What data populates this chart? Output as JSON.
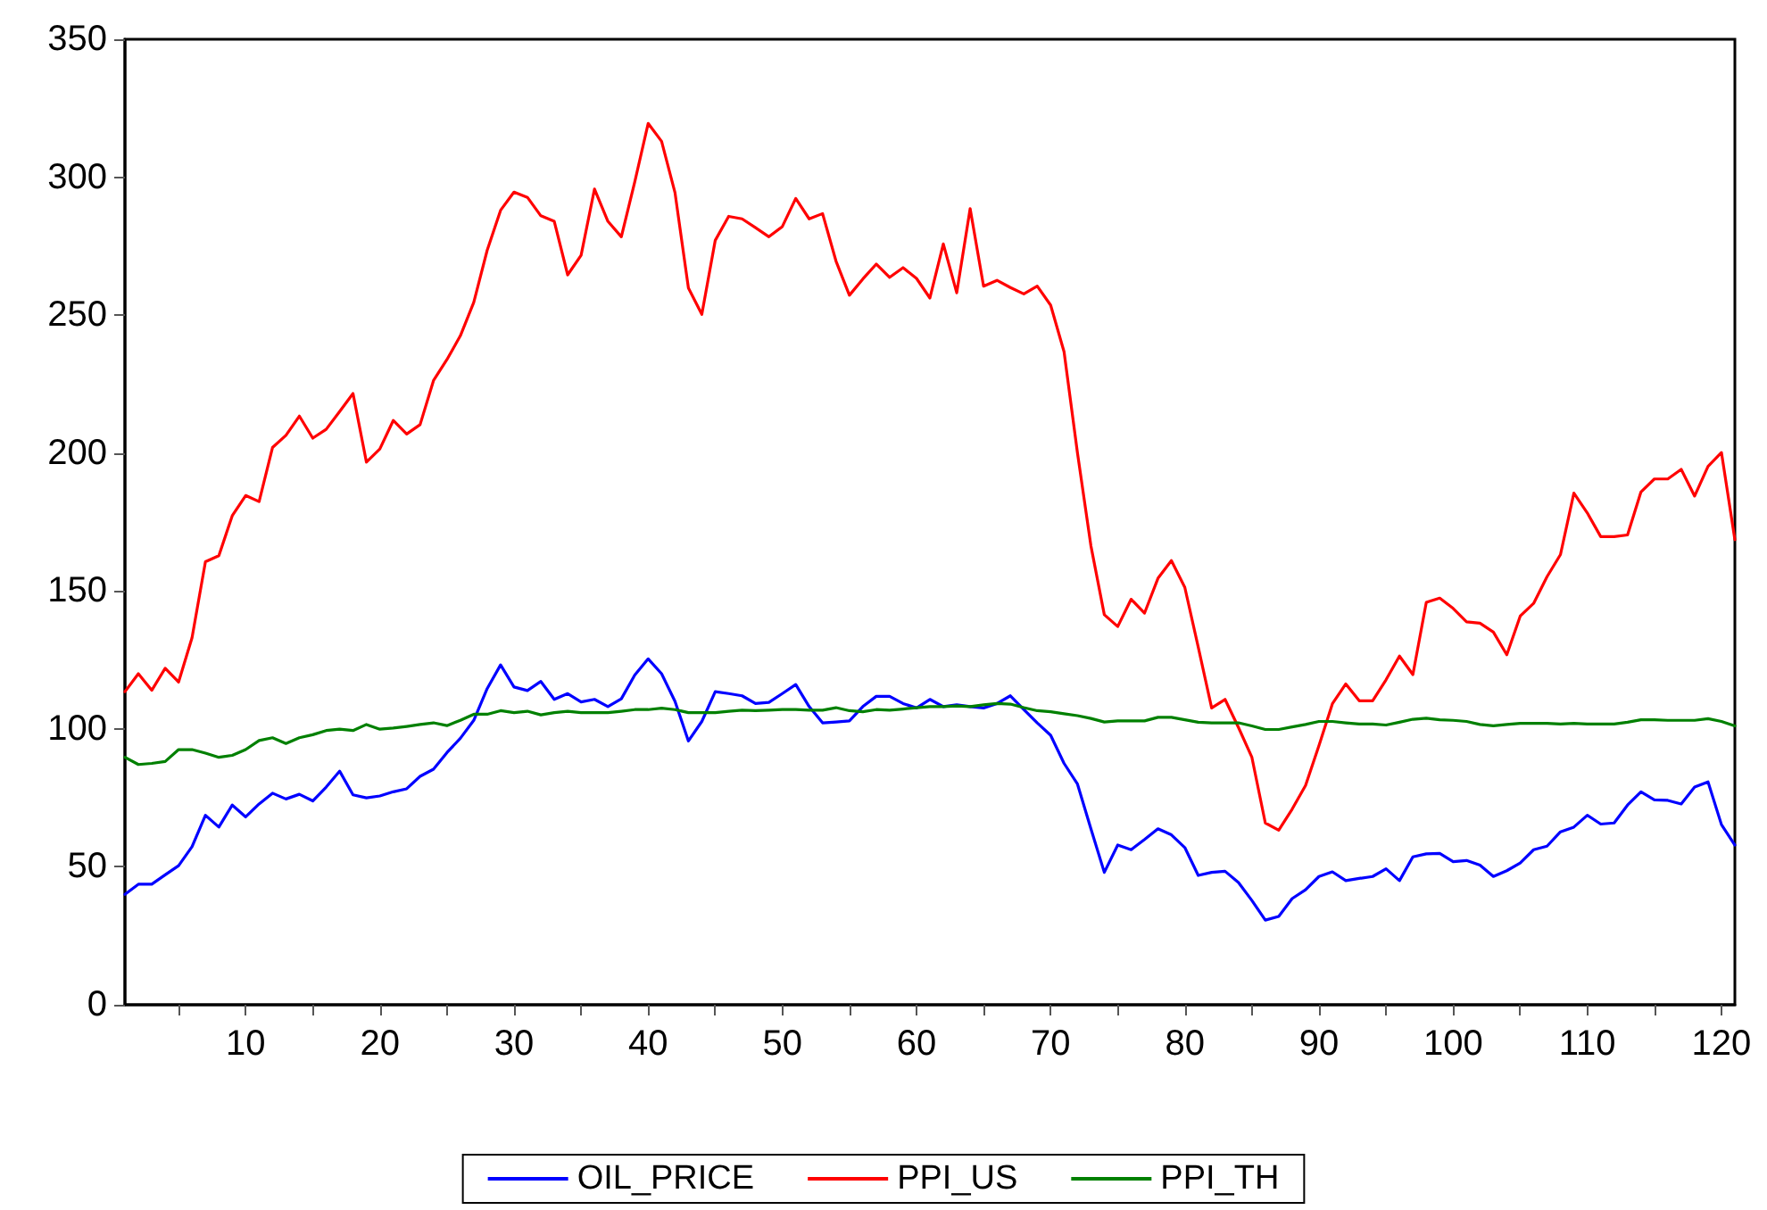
{
  "chart_data": {
    "type": "line",
    "legend": "bottom",
    "grid": false,
    "marker": "none",
    "line_style": "solid",
    "xlim": [
      1,
      121
    ],
    "ylim": [
      0,
      350
    ],
    "yticks": [
      0,
      50,
      100,
      150,
      200,
      250,
      300,
      350
    ],
    "xticks": [
      {
        "value": 5,
        "label": null
      },
      10,
      {
        "value": 15,
        "label": null
      },
      20,
      {
        "value": 25,
        "label": null
      },
      30,
      {
        "value": 35,
        "label": null
      },
      40,
      {
        "value": 45,
        "label": null
      },
      50,
      {
        "value": 55,
        "label": null
      },
      60,
      {
        "value": 65,
        "label": null
      },
      70,
      {
        "value": 75,
        "label": null
      },
      80,
      {
        "value": 85,
        "label": null
      },
      90,
      {
        "value": 95,
        "label": null
      },
      100,
      {
        "value": 105,
        "label": null
      },
      110,
      {
        "value": 115,
        "label": null
      },
      120
    ],
    "x": [
      1,
      2,
      3,
      4,
      5,
      6,
      7,
      8,
      9,
      10,
      11,
      12,
      13,
      14,
      15,
      16,
      17,
      18,
      19,
      20,
      21,
      22,
      23,
      24,
      25,
      26,
      27,
      28,
      29,
      30,
      31,
      32,
      33,
      34,
      35,
      36,
      37,
      38,
      39,
      40,
      41,
      42,
      43,
      44,
      45,
      46,
      47,
      48,
      49,
      50,
      51,
      52,
      53,
      54,
      55,
      56,
      57,
      58,
      59,
      60,
      61,
      62,
      63,
      64,
      65,
      66,
      67,
      68,
      69,
      70,
      71,
      72,
      73,
      74,
      75,
      76,
      77,
      78,
      79,
      80,
      81,
      82,
      83,
      84,
      85,
      86,
      87,
      88,
      89,
      90,
      91,
      92,
      93,
      94,
      95,
      96,
      97,
      98,
      99,
      100,
      101,
      102,
      103,
      104,
      105,
      106,
      107,
      108,
      109,
      110,
      111,
      112,
      113,
      114,
      115,
      116,
      117,
      118,
      119,
      120,
      121
    ],
    "series": [
      {
        "name": "OIL_PRICE",
        "color": "#0000ff",
        "values": [
          40,
          43.7,
          43.7,
          47.1,
          50.4,
          57.3,
          68.7,
          64.4,
          72.4,
          68.1,
          72.8,
          76.7,
          74.6,
          76.3,
          73.9,
          78.9,
          84.7,
          76.1,
          75,
          75.7,
          77.2,
          78.3,
          82.8,
          85.4,
          91.4,
          96.6,
          103.1,
          114.6,
          123.2,
          115.2,
          113.9,
          117.2,
          110.7,
          112.8,
          109.8,
          110.7,
          108.1,
          110.9,
          119.5,
          125.4,
          120,
          110,
          95.6,
          102.7,
          113.5,
          112.8,
          112,
          109.2,
          109.6,
          112.8,
          116.1,
          108.1,
          102.2,
          102.5,
          102.9,
          108.1,
          111.8,
          111.8,
          109.2,
          107.6,
          110.7,
          108.1,
          108.7,
          108.1,
          107.6,
          109.2,
          112,
          107,
          102.2,
          97.7,
          87.5,
          80,
          63.8,
          48,
          57.9,
          56.2,
          59.9,
          63.8,
          61.6,
          57,
          46.9,
          48,
          48.4,
          44.3,
          37.8,
          30.7,
          32,
          38.5,
          41.7,
          46.5,
          48.2,
          45,
          45.8,
          46.5,
          49.3,
          45,
          53.6,
          54.7,
          54.9,
          51.9,
          52.3,
          50.6,
          46.5,
          48.6,
          51.4,
          56.2,
          57.5,
          62.7,
          64.4,
          68.7,
          65.5,
          65.9,
          72.4,
          77.2,
          74.3,
          74.1,
          72.8,
          78.9,
          80.8,
          65.3,
          57.9
        ]
      },
      {
        "name": "PPI_US",
        "color": "#ff0000",
        "values": [
          113.5,
          120,
          114,
          122,
          117,
          133,
          160.6,
          162.8,
          177.3,
          184.6,
          182.4,
          202,
          206.4,
          213.4,
          205.4,
          208.6,
          215,
          221.6,
          196.7,
          201.5,
          211.8,
          206.9,
          210.3,
          226.3,
          233.9,
          242.5,
          254.6,
          273.5,
          288,
          294.6,
          292.7,
          286,
          284,
          264.6,
          271.7,
          295.7,
          284,
          278.4,
          298.3,
          319.5,
          313,
          294.4,
          259.8,
          250.3,
          277.1,
          285.8,
          284.9,
          281.7,
          278.4,
          282.1,
          292.3,
          284.9,
          286.8,
          269.6,
          257.2,
          263.1,
          268.5,
          263.7,
          267.2,
          263.3,
          256.2,
          275.8,
          258.1,
          288.6,
          260.5,
          262.6,
          260,
          257.7,
          260.5,
          253.6,
          236.7,
          200,
          166.4,
          141.4,
          137.1,
          147,
          142,
          154.6,
          161,
          151.3,
          129.7,
          107.6,
          110.7,
          100.5,
          89.7,
          65.9,
          63.3,
          70.9,
          79.5,
          94,
          109.1,
          116.3,
          110.2,
          110.2,
          117.8,
          126.4,
          119.7,
          145.9,
          147.4,
          143.7,
          138.8,
          138.3,
          135.1,
          126.9,
          140.9,
          145.5,
          155.2,
          163.2,
          185.5,
          178.3,
          169.7,
          169.7,
          170.3,
          185.9,
          190.6,
          190.6,
          194.1,
          184.4,
          195.2,
          200.2,
          168.6
        ]
      },
      {
        "name": "PPI_TH",
        "color": "#008000",
        "values": [
          89.7,
          87.1,
          87.5,
          88.2,
          92.5,
          92.5,
          91.2,
          89.7,
          90.4,
          92.5,
          95.8,
          96.8,
          94.7,
          96.8,
          97.9,
          99.4,
          99.9,
          99.4,
          101.6,
          99.9,
          100.3,
          100.9,
          101.6,
          102.2,
          101.2,
          103.1,
          105.3,
          105.3,
          106.6,
          105.9,
          106.4,
          105.1,
          105.9,
          106.4,
          105.9,
          105.9,
          105.9,
          106.4,
          107,
          107,
          107.5,
          107,
          105.9,
          105.9,
          105.9,
          106.4,
          106.8,
          106.6,
          106.8,
          107,
          107,
          106.8,
          106.8,
          107.7,
          106.6,
          106.2,
          107,
          106.8,
          107.2,
          107.7,
          108.1,
          108.1,
          108.3,
          108.1,
          108.7,
          109.2,
          109,
          107.7,
          106.6,
          106.2,
          105.5,
          104.8,
          103.8,
          102.5,
          102.9,
          102.9,
          102.9,
          104.2,
          104.2,
          103.3,
          102.4,
          102.2,
          102.2,
          102.2,
          101.1,
          99.8,
          99.8,
          100.7,
          101.6,
          102.7,
          102.7,
          102.2,
          101.8,
          101.8,
          101.4,
          102.4,
          103.5,
          103.9,
          103.3,
          103.1,
          102.7,
          101.6,
          101.1,
          101.6,
          102,
          102,
          102,
          101.8,
          102,
          101.8,
          101.8,
          101.8,
          102.4,
          103.3,
          103.3,
          103.1,
          103.1,
          103.1,
          103.7,
          102.7,
          101.1
        ]
      }
    ]
  }
}
